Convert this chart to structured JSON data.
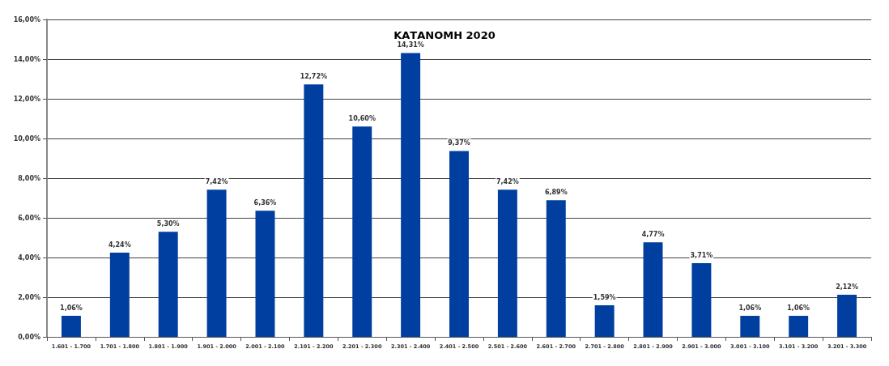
{
  "chart_data": {
    "type": "bar",
    "title": "ΚΑΤΑΝΟΜΗ 2020",
    "categories": [
      "1.601 - 1.700",
      "1.701 - 1.800",
      "1.801 - 1.900",
      "1.901 - 2.000",
      "2.001 - 2.100",
      "2.101 - 2.200",
      "2.201 - 2.300",
      "2.301 - 2.400",
      "2.401 - 2.500",
      "2.501 - 2.600",
      "2.601 - 2.700",
      "2.701 - 2.800",
      "2.801 - 2.900",
      "2.901 - 3.000",
      "3.001 - 3.100",
      "3.101 - 3.200",
      "3.201 - 3.300"
    ],
    "values": [
      1.06,
      4.24,
      5.3,
      7.42,
      6.36,
      12.72,
      10.6,
      14.31,
      9.37,
      7.42,
      6.89,
      1.59,
      4.77,
      3.71,
      1.06,
      1.06,
      2.12
    ],
    "value_labels": [
      "1,06%",
      "4,24%",
      "5,30%",
      "7,42%",
      "6,36%",
      "12,72%",
      "10,60%",
      "14,31%",
      "9,37%",
      "7,42%",
      "6,89%",
      "1,59%",
      "4,77%",
      "3,71%",
      "1,06%",
      "1,06%",
      "2,12%"
    ],
    "color": "#003f9f",
    "ylim": [
      0,
      16
    ],
    "yticks": [
      {
        "value": 0,
        "label": "0,00%"
      },
      {
        "value": 2,
        "label": "2,00%"
      },
      {
        "value": 4,
        "label": "4,00%"
      },
      {
        "value": 6,
        "label": "6,00%"
      },
      {
        "value": 8,
        "label": "8,00%"
      },
      {
        "value": 10,
        "label": "10,00%"
      },
      {
        "value": 12,
        "label": "12,00%"
      },
      {
        "value": 14,
        "label": "14,00%"
      },
      {
        "value": 16,
        "label": "16,00%"
      }
    ],
    "grid": "y"
  }
}
